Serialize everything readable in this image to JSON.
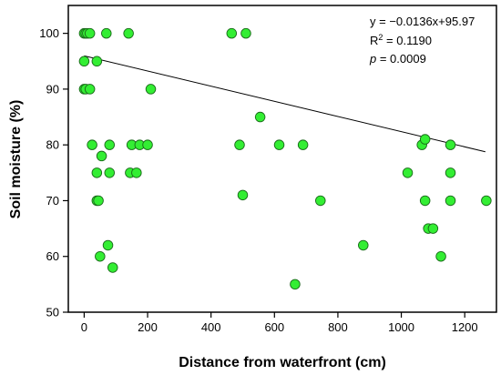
{
  "chart_data": {
    "type": "scatter",
    "title": "",
    "xlabel": "Distance from waterfront (cm)",
    "ylabel": "Soil moisture (%)",
    "xlim": [
      -50,
      1300
    ],
    "ylim": [
      50,
      105
    ],
    "xticks": [
      "0",
      "200",
      "400",
      "600",
      "800",
      "1000",
      "1200"
    ],
    "yticks": [
      "50",
      "60",
      "70",
      "80",
      "90",
      "100"
    ],
    "grid": false,
    "point_color": "#33ee33",
    "point_edge_color": "#1a6a1a",
    "points": [
      {
        "x": 0,
        "y": 100
      },
      {
        "x": 5,
        "y": 100
      },
      {
        "x": 10,
        "y": 100
      },
      {
        "x": 18,
        "y": 100
      },
      {
        "x": 0,
        "y": 95
      },
      {
        "x": 0,
        "y": 90
      },
      {
        "x": 5,
        "y": 90
      },
      {
        "x": 18,
        "y": 90
      },
      {
        "x": 25,
        "y": 80
      },
      {
        "x": 40,
        "y": 95
      },
      {
        "x": 40,
        "y": 75
      },
      {
        "x": 40,
        "y": 70
      },
      {
        "x": 45,
        "y": 70
      },
      {
        "x": 50,
        "y": 60
      },
      {
        "x": 55,
        "y": 78
      },
      {
        "x": 70,
        "y": 100
      },
      {
        "x": 75,
        "y": 62
      },
      {
        "x": 80,
        "y": 80
      },
      {
        "x": 80,
        "y": 75
      },
      {
        "x": 90,
        "y": 58
      },
      {
        "x": 140,
        "y": 100
      },
      {
        "x": 145,
        "y": 75
      },
      {
        "x": 150,
        "y": 80
      },
      {
        "x": 165,
        "y": 75
      },
      {
        "x": 175,
        "y": 80
      },
      {
        "x": 200,
        "y": 80
      },
      {
        "x": 210,
        "y": 90
      },
      {
        "x": 465,
        "y": 100
      },
      {
        "x": 490,
        "y": 80
      },
      {
        "x": 500,
        "y": 71
      },
      {
        "x": 510,
        "y": 100
      },
      {
        "x": 555,
        "y": 85
      },
      {
        "x": 615,
        "y": 80
      },
      {
        "x": 665,
        "y": 55
      },
      {
        "x": 690,
        "y": 80
      },
      {
        "x": 745,
        "y": 70
      },
      {
        "x": 880,
        "y": 62
      },
      {
        "x": 1020,
        "y": 75
      },
      {
        "x": 1065,
        "y": 80
      },
      {
        "x": 1075,
        "y": 81
      },
      {
        "x": 1075,
        "y": 70
      },
      {
        "x": 1085,
        "y": 65
      },
      {
        "x": 1100,
        "y": 65
      },
      {
        "x": 1125,
        "y": 60
      },
      {
        "x": 1155,
        "y": 80
      },
      {
        "x": 1155,
        "y": 75
      },
      {
        "x": 1155,
        "y": 70
      },
      {
        "x": 1268,
        "y": 70
      }
    ],
    "regression": {
      "slope": -0.0136,
      "intercept": 95.97,
      "x_range": [
        0,
        1265
      ]
    }
  },
  "annotations": {
    "equation": "y = −0.0136x+95.97",
    "r2_label": "R",
    "r2_sup": "2",
    "r2_value": " = 0.1190",
    "p_label": "p",
    "p_value": " = 0.0009"
  }
}
